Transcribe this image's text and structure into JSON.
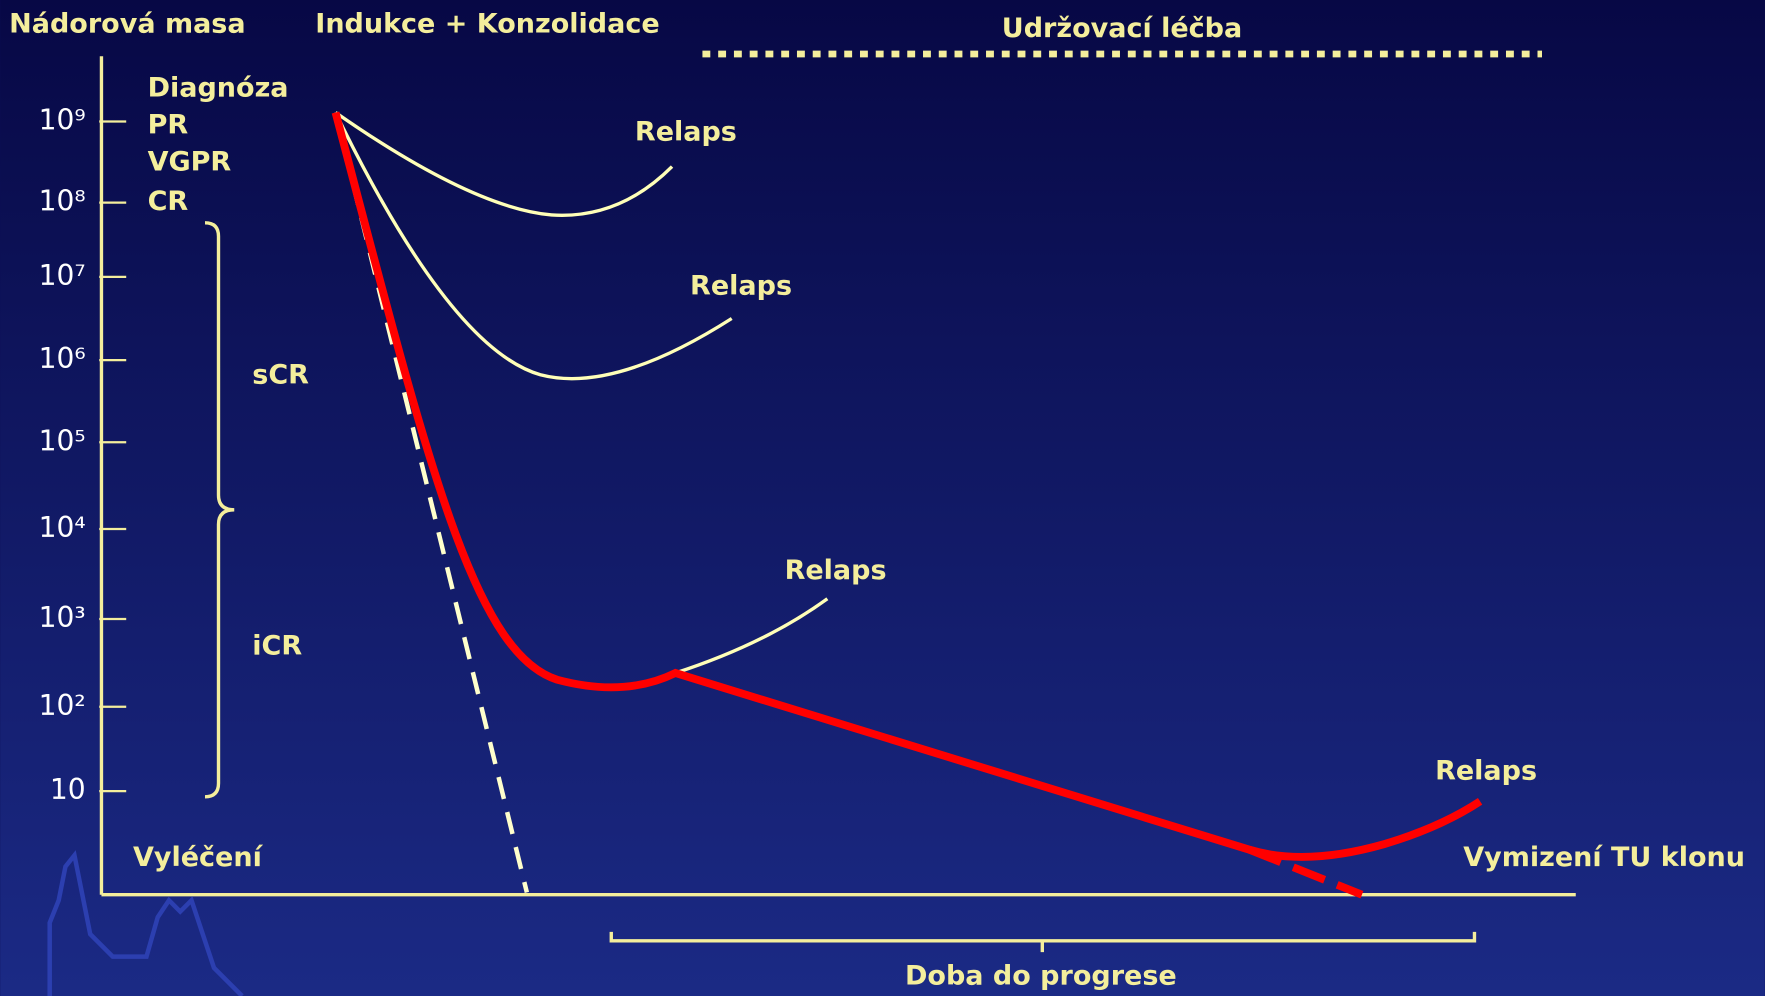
{
  "axis": {
    "y_title": "Nádorová masa",
    "y_labels": [
      "10⁹",
      "10⁸",
      "10⁷",
      "10⁶",
      "10⁵",
      "10⁴",
      "10³",
      "10²",
      "10"
    ]
  },
  "phases": {
    "induction": "Indukce + Konzolidace",
    "maintenance": "Udržovací léčba"
  },
  "response_levels": [
    "Diagnóza",
    "PR",
    "VGPR",
    "CR"
  ],
  "bracket_labels": [
    "sCR",
    "iCR"
  ],
  "relapse_labels": [
    "Relaps",
    "Relaps",
    "Relaps",
    "Relaps"
  ],
  "cure": "Vyléčení",
  "clone_eradication": "Vymizení TU klonu",
  "time_to_progression": "Doba do progrese"
}
